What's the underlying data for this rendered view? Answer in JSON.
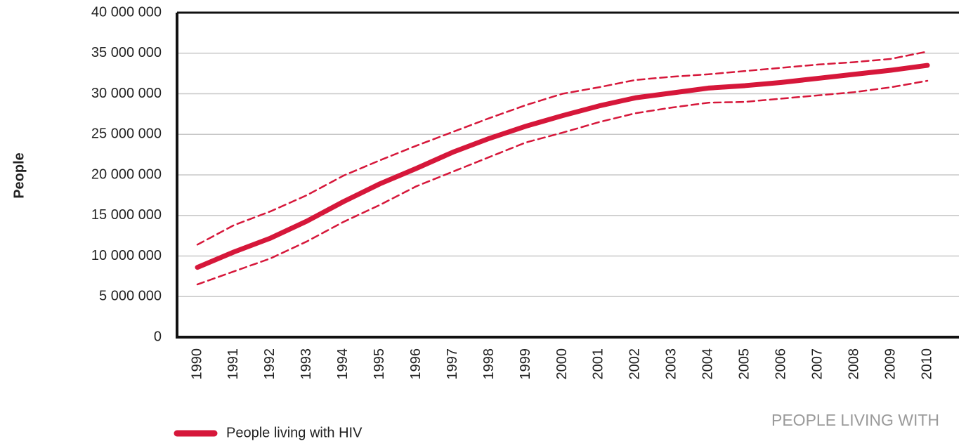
{
  "chart_data": {
    "type": "line",
    "ylabel": "People",
    "caption": "PEOPLE LIVING WITH",
    "categories": [
      "1990",
      "1991",
      "1992",
      "1993",
      "1994",
      "1995",
      "1996",
      "1997",
      "1998",
      "1999",
      "2000",
      "2001",
      "2002",
      "2003",
      "2004",
      "2005",
      "2006",
      "2007",
      "2008",
      "2009",
      "2010"
    ],
    "series": [
      {
        "name": "People living with HIV",
        "color": "#d6173a",
        "style": "solid",
        "values": [
          8600000,
          10500000,
          12200000,
          14300000,
          16700000,
          18900000,
          20800000,
          22800000,
          24500000,
          26000000,
          27300000,
          28500000,
          29500000,
          30100000,
          30700000,
          31000000,
          31400000,
          31900000,
          32400000,
          32900000,
          33500000
        ]
      },
      {
        "color": "#d6173a",
        "style": "dashed",
        "values": [
          11400000,
          13800000,
          15500000,
          17500000,
          19900000,
          21800000,
          23600000,
          25300000,
          27000000,
          28600000,
          30000000,
          30800000,
          31700000,
          32100000,
          32400000,
          32800000,
          33200000,
          33600000,
          33900000,
          34300000,
          35200000
        ]
      },
      {
        "color": "#d6173a",
        "style": "dashed",
        "values": [
          6500000,
          8100000,
          9700000,
          11800000,
          14200000,
          16300000,
          18600000,
          20400000,
          22200000,
          24000000,
          25200000,
          26500000,
          27600000,
          28300000,
          28900000,
          29000000,
          29400000,
          29800000,
          30200000,
          30800000,
          31600000
        ]
      }
    ],
    "ylim": [
      0,
      40000000
    ],
    "yticks": [
      0,
      {
        "value": 5000000,
        "label": "5 000 000"
      },
      {
        "value": 10000000,
        "label": "10 000 000"
      },
      {
        "value": 15000000,
        "label": "15 000 000"
      },
      {
        "value": 20000000,
        "label": "20 000 000"
      },
      {
        "value": 25000000,
        "label": "25 000 000"
      },
      {
        "value": 30000000,
        "label": "30 000 000"
      },
      {
        "value": 35000000,
        "label": "35 000 000"
      },
      {
        "value": 40000000,
        "label": "40 000 000"
      }
    ],
    "grid": true,
    "legend": "bottom-left"
  }
}
